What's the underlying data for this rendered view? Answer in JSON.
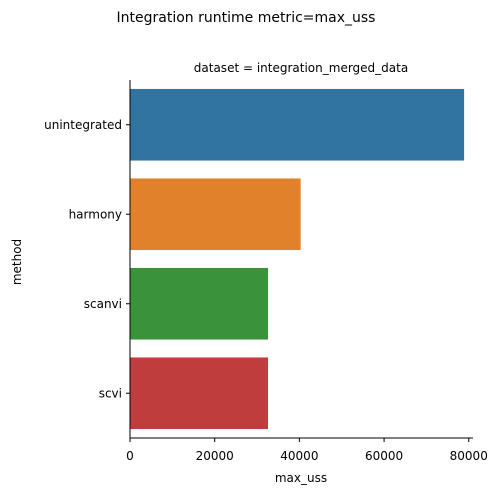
{
  "chart_data": {
    "type": "bar",
    "orientation": "horizontal",
    "title": "Integration runtime metric=max_uss",
    "subtitle": "dataset = integration_merged_data",
    "xlabel": "max_uss",
    "ylabel": "method",
    "xlim": [
      0,
      81000
    ],
    "xticks": [
      0,
      20000,
      40000,
      60000,
      80000
    ],
    "xtick_labels": [
      "0",
      "20000",
      "40000",
      "60000",
      "80000"
    ],
    "grid": false,
    "categories": [
      "unintegrated",
      "harmony",
      "scanvi",
      "scvi"
    ],
    "values": [
      78900,
      40300,
      32600,
      32600
    ],
    "colors": [
      "#3274a1",
      "#e1812c",
      "#3a923a",
      "#c03d3e"
    ]
  }
}
